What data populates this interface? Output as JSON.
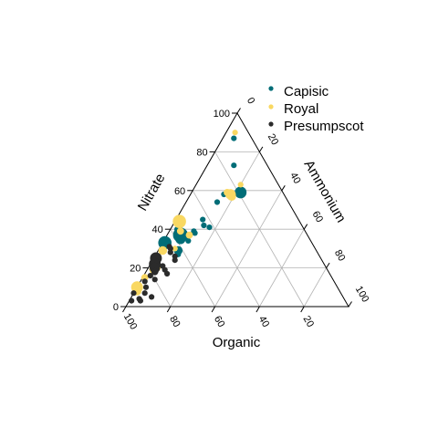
{
  "chart_data": {
    "type": "scatter",
    "subtype": "ternary",
    "title": "",
    "axes": {
      "left": {
        "label": "Nitrate",
        "ticks": [
          0,
          20,
          40,
          60,
          80,
          100
        ]
      },
      "right": {
        "label": "Ammonium",
        "ticks": [
          0,
          20,
          40,
          60,
          80,
          100
        ]
      },
      "bottom": {
        "label": "Organic",
        "ticks": [
          100,
          80,
          60,
          40,
          20
        ]
      }
    },
    "grid": true,
    "legend": {
      "position": "top-right",
      "marker": "•"
    },
    "series": [
      {
        "name": "Capisic",
        "color": "#006D77",
        "points": [
          {
            "nitrate": 87,
            "ammonium": 5,
            "organic": 8,
            "size": 2
          },
          {
            "nitrate": 73,
            "ammonium": 12,
            "organic": 15,
            "size": 2
          },
          {
            "nitrate": 59,
            "ammonium": 22,
            "organic": 19,
            "size": 6
          },
          {
            "nitrate": 58,
            "ammonium": 15,
            "organic": 27,
            "size": 2
          },
          {
            "nitrate": 54,
            "ammonium": 14,
            "organic": 32,
            "size": 2
          },
          {
            "nitrate": 45,
            "ammonium": 12,
            "organic": 43,
            "size": 2
          },
          {
            "nitrate": 42,
            "ammonium": 14,
            "organic": 44,
            "size": 2
          },
          {
            "nitrate": 41,
            "ammonium": 17,
            "organic": 42,
            "size": 2
          },
          {
            "nitrate": 39,
            "ammonium": 11,
            "organic": 50,
            "size": 2
          },
          {
            "nitrate": 38,
            "ammonium": 12,
            "organic": 50,
            "size": 2
          },
          {
            "nitrate": 39,
            "ammonium": 5,
            "organic": 56,
            "size": 2
          },
          {
            "nitrate": 40,
            "ammonium": 3,
            "organic": 57,
            "size": 2
          },
          {
            "nitrate": 37,
            "ammonium": 6,
            "organic": 57,
            "size": 8
          },
          {
            "nitrate": 35,
            "ammonium": 7,
            "organic": 58,
            "size": 5
          },
          {
            "nitrate": 34,
            "ammonium": 11,
            "organic": 55,
            "size": 2
          },
          {
            "nitrate": 33,
            "ammonium": 1,
            "organic": 66,
            "size": 7
          },
          {
            "nitrate": 29,
            "ammonium": 9,
            "organic": 62,
            "size": 4
          },
          {
            "nitrate": 27,
            "ammonium": 10,
            "organic": 63,
            "size": 2
          }
        ]
      },
      {
        "name": "Royal",
        "color": "#F9D862",
        "points": [
          {
            "nitrate": 90,
            "ammonium": 4,
            "organic": 6,
            "size": 2
          },
          {
            "nitrate": 63,
            "ammonium": 20,
            "organic": 17,
            "size": 2
          },
          {
            "nitrate": 59,
            "ammonium": 16,
            "organic": 25,
            "size": 3
          },
          {
            "nitrate": 58,
            "ammonium": 18,
            "organic": 24,
            "size": 5
          },
          {
            "nitrate": 57,
            "ammonium": 19,
            "organic": 24,
            "size": 4
          },
          {
            "nitrate": 44,
            "ammonium": 2,
            "organic": 54,
            "size": 7
          },
          {
            "nitrate": 39,
            "ammonium": 5,
            "organic": 56,
            "size": 3
          },
          {
            "nitrate": 37,
            "ammonium": 10,
            "organic": 53,
            "size": 3
          },
          {
            "nitrate": 30,
            "ammonium": 7,
            "organic": 63,
            "size": 2
          },
          {
            "nitrate": 29,
            "ammonium": 2,
            "organic": 69,
            "size": 4
          },
          {
            "nitrate": 21,
            "ammonium": 2,
            "organic": 77,
            "size": 2
          },
          {
            "nitrate": 20,
            "ammonium": 4,
            "organic": 76,
            "size": 3
          },
          {
            "nitrate": 19,
            "ammonium": 3,
            "organic": 78,
            "size": 4
          },
          {
            "nitrate": 15,
            "ammonium": 1,
            "organic": 84,
            "size": 3
          },
          {
            "nitrate": 10,
            "ammonium": 0,
            "organic": 90,
            "size": 6
          },
          {
            "nitrate": 8,
            "ammonium": 1,
            "organic": 91,
            "size": 4
          }
        ]
      },
      {
        "name": "Presumpscot",
        "color": "#2B2B2B",
        "points": [
          {
            "nitrate": 31,
            "ammonium": 4,
            "organic": 65,
            "size": 2
          },
          {
            "nitrate": 30,
            "ammonium": 5,
            "organic": 65,
            "size": 2
          },
          {
            "nitrate": 28,
            "ammonium": 6,
            "organic": 66,
            "size": 2
          },
          {
            "nitrate": 26,
            "ammonium": 9,
            "organic": 65,
            "size": 2
          },
          {
            "nitrate": 25,
            "ammonium": 1,
            "organic": 74,
            "size": 6
          },
          {
            "nitrate": 24,
            "ammonium": 10,
            "organic": 66,
            "size": 2
          },
          {
            "nitrate": 22,
            "ammonium": 2,
            "organic": 76,
            "size": 6
          },
          {
            "nitrate": 21,
            "ammonium": 6,
            "organic": 73,
            "size": 2
          },
          {
            "nitrate": 20,
            "ammonium": 3,
            "organic": 77,
            "size": 5
          },
          {
            "nitrate": 19,
            "ammonium": 8,
            "organic": 73,
            "size": 2
          },
          {
            "nitrate": 18,
            "ammonium": 4,
            "organic": 78,
            "size": 3
          },
          {
            "nitrate": 17,
            "ammonium": 10,
            "organic": 73,
            "size": 2
          },
          {
            "nitrate": 16,
            "ammonium": 3,
            "organic": 81,
            "size": 2
          },
          {
            "nitrate": 14,
            "ammonium": 6,
            "organic": 80,
            "size": 2
          },
          {
            "nitrate": 13,
            "ammonium": 2,
            "organic": 85,
            "size": 2
          },
          {
            "nitrate": 10,
            "ammonium": 4,
            "organic": 86,
            "size": 2
          },
          {
            "nitrate": 7,
            "ammonium": 5,
            "organic": 88,
            "size": 2
          },
          {
            "nitrate": 7,
            "ammonium": 0,
            "organic": 93,
            "size": 2
          },
          {
            "nitrate": 5,
            "ammonium": 9,
            "organic": 86,
            "size": 2
          },
          {
            "nitrate": 4,
            "ammonium": 4,
            "organic": 92,
            "size": 2
          },
          {
            "nitrate": 3,
            "ammonium": 5,
            "organic": 92,
            "size": 2
          },
          {
            "nitrate": 3,
            "ammonium": 1,
            "organic": 96,
            "size": 2
          }
        ]
      }
    ]
  }
}
